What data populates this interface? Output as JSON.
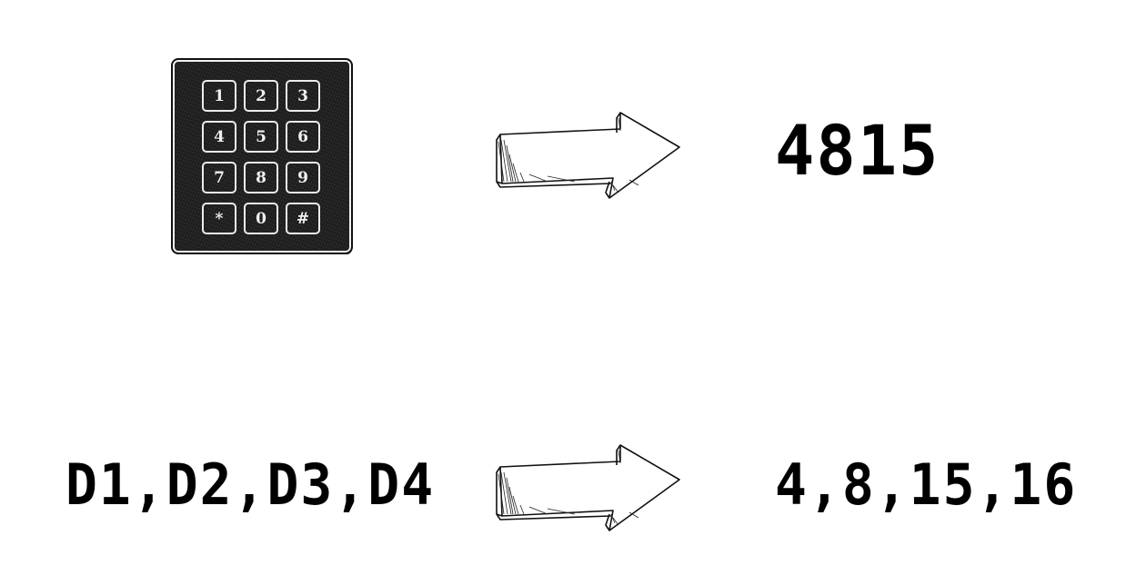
{
  "keypad": {
    "keys": [
      "1",
      "2",
      "3",
      "4",
      "5",
      "6",
      "7",
      "8",
      "9",
      "*",
      "0",
      "#"
    ]
  },
  "top_row": {
    "output": "4815"
  },
  "bottom_row": {
    "input": "D1,D2,D3,D4",
    "output": "4,8,15,16"
  },
  "icons": {
    "top_arrow": "right-arrow-icon",
    "bottom_arrow": "right-arrow-icon",
    "keypad": "keypad-icon"
  }
}
